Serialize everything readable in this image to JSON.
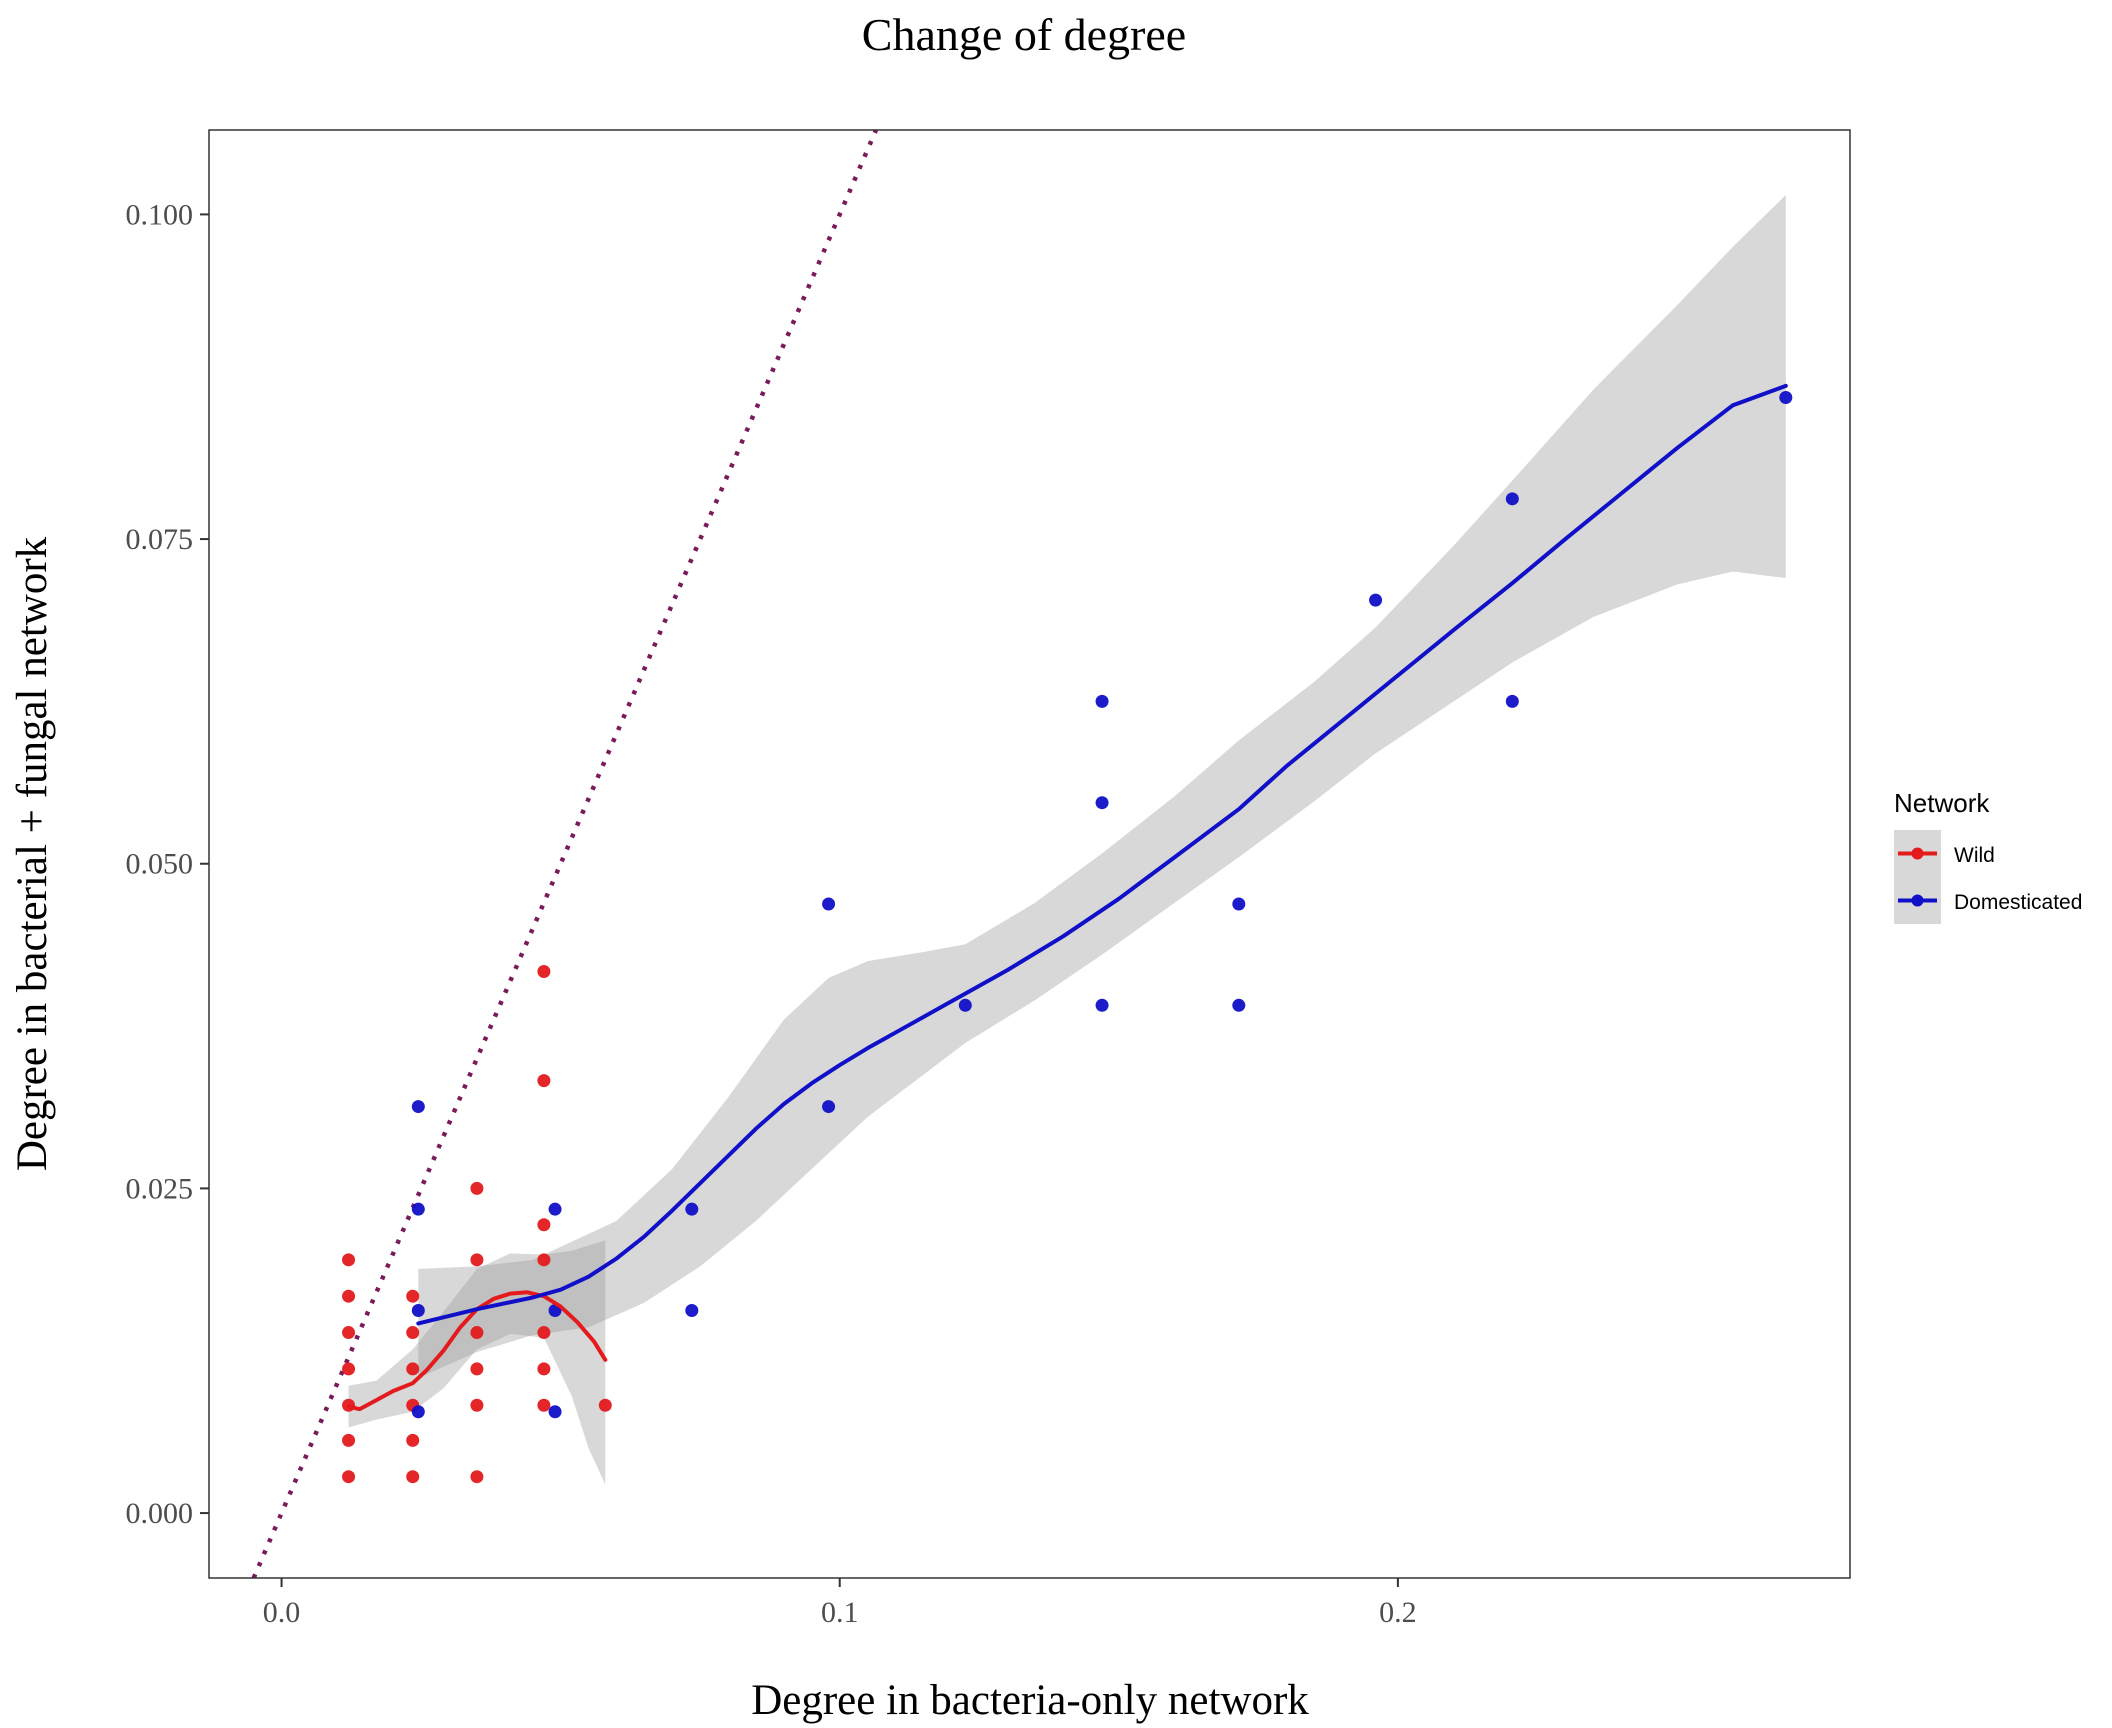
{
  "chart_data": {
    "type": "scatter",
    "title": "Change of degree",
    "xlabel": "Degree in bacteria-only network",
    "ylabel": "Degree in bacterial + fungal network",
    "xlim": [
      -0.013,
      0.281
    ],
    "ylim": [
      -0.005,
      0.1065
    ],
    "x_ticks": [
      {
        "value": 0.0,
        "label": "0.0"
      },
      {
        "value": 0.1,
        "label": "0.1"
      },
      {
        "value": 0.2,
        "label": "0.2"
      }
    ],
    "y_ticks": [
      {
        "value": 0.0,
        "label": "0.000"
      },
      {
        "value": 0.025,
        "label": "0.025"
      },
      {
        "value": 0.05,
        "label": "0.050"
      },
      {
        "value": 0.075,
        "label": "0.075"
      },
      {
        "value": 0.1,
        "label": "0.100"
      }
    ],
    "grid": false,
    "legend": {
      "title": "Network",
      "position": "right",
      "entries": [
        {
          "label": "Wild",
          "color": "#e41a1c"
        },
        {
          "label": "Domesticated",
          "color": "#1010c8"
        }
      ]
    },
    "reference_line": {
      "type": "identity",
      "slope": 1,
      "intercept": 0,
      "style": "dotted",
      "color": "#7b1a5a"
    },
    "series": [
      {
        "name": "Wild",
        "color": "#e41a1c",
        "points": [
          {
            "x": 0.012,
            "y": 0.0195
          },
          {
            "x": 0.012,
            "y": 0.0167
          },
          {
            "x": 0.012,
            "y": 0.0139
          },
          {
            "x": 0.012,
            "y": 0.0111
          },
          {
            "x": 0.012,
            "y": 0.0083
          },
          {
            "x": 0.012,
            "y": 0.0056
          },
          {
            "x": 0.012,
            "y": 0.0028
          },
          {
            "x": 0.0235,
            "y": 0.0167
          },
          {
            "x": 0.0235,
            "y": 0.0139
          },
          {
            "x": 0.0235,
            "y": 0.0111
          },
          {
            "x": 0.0235,
            "y": 0.0083
          },
          {
            "x": 0.0235,
            "y": 0.0056
          },
          {
            "x": 0.0235,
            "y": 0.0028
          },
          {
            "x": 0.035,
            "y": 0.025
          },
          {
            "x": 0.035,
            "y": 0.0195
          },
          {
            "x": 0.035,
            "y": 0.0139
          },
          {
            "x": 0.035,
            "y": 0.0111
          },
          {
            "x": 0.035,
            "y": 0.0083
          },
          {
            "x": 0.035,
            "y": 0.0028
          },
          {
            "x": 0.047,
            "y": 0.0417
          },
          {
            "x": 0.047,
            "y": 0.0333
          },
          {
            "x": 0.047,
            "y": 0.0222
          },
          {
            "x": 0.047,
            "y": 0.0195
          },
          {
            "x": 0.047,
            "y": 0.0139
          },
          {
            "x": 0.047,
            "y": 0.0111
          },
          {
            "x": 0.047,
            "y": 0.0083
          },
          {
            "x": 0.058,
            "y": 0.0083
          }
        ],
        "smooth": [
          [
            0.012,
            0.0082
          ],
          [
            0.014,
            0.008
          ],
          [
            0.017,
            0.0087
          ],
          [
            0.02,
            0.0094
          ],
          [
            0.0235,
            0.01
          ],
          [
            0.026,
            0.011
          ],
          [
            0.029,
            0.0125
          ],
          [
            0.032,
            0.0143
          ],
          [
            0.035,
            0.0157
          ],
          [
            0.038,
            0.0165
          ],
          [
            0.041,
            0.0169
          ],
          [
            0.044,
            0.017
          ],
          [
            0.047,
            0.0167
          ],
          [
            0.05,
            0.0159
          ],
          [
            0.053,
            0.0147
          ],
          [
            0.056,
            0.0132
          ],
          [
            0.058,
            0.0118
          ]
        ],
        "band_upper": [
          [
            0.012,
            0.0098
          ],
          [
            0.017,
            0.0102
          ],
          [
            0.0235,
            0.0126
          ],
          [
            0.029,
            0.0155
          ],
          [
            0.035,
            0.0188
          ],
          [
            0.041,
            0.02
          ],
          [
            0.047,
            0.0199
          ],
          [
            0.052,
            0.0202
          ],
          [
            0.058,
            0.021
          ]
        ],
        "band_lower": [
          [
            0.012,
            0.0066
          ],
          [
            0.017,
            0.0072
          ],
          [
            0.0235,
            0.0078
          ],
          [
            0.029,
            0.0096
          ],
          [
            0.035,
            0.0126
          ],
          [
            0.041,
            0.0138
          ],
          [
            0.047,
            0.0135
          ],
          [
            0.052,
            0.009
          ],
          [
            0.055,
            0.005
          ],
          [
            0.058,
            0.0022
          ]
        ]
      },
      {
        "name": "Domesticated",
        "color": "#1010c8",
        "points": [
          {
            "x": 0.0245,
            "y": 0.0313
          },
          {
            "x": 0.0245,
            "y": 0.0234
          },
          {
            "x": 0.0245,
            "y": 0.0156
          },
          {
            "x": 0.0245,
            "y": 0.0078
          },
          {
            "x": 0.049,
            "y": 0.0234
          },
          {
            "x": 0.049,
            "y": 0.0156
          },
          {
            "x": 0.049,
            "y": 0.0078
          },
          {
            "x": 0.0735,
            "y": 0.0234
          },
          {
            "x": 0.0735,
            "y": 0.0156
          },
          {
            "x": 0.098,
            "y": 0.0469
          },
          {
            "x": 0.098,
            "y": 0.0313
          },
          {
            "x": 0.1225,
            "y": 0.0391
          },
          {
            "x": 0.147,
            "y": 0.0625
          },
          {
            "x": 0.147,
            "y": 0.0547
          },
          {
            "x": 0.147,
            "y": 0.0391
          },
          {
            "x": 0.1715,
            "y": 0.0469
          },
          {
            "x": 0.1715,
            "y": 0.0391
          },
          {
            "x": 0.196,
            "y": 0.0703
          },
          {
            "x": 0.2205,
            "y": 0.0781
          },
          {
            "x": 0.2205,
            "y": 0.0625
          },
          {
            "x": 0.2695,
            "y": 0.0859
          }
        ],
        "smooth": [
          [
            0.0245,
            0.0146
          ],
          [
            0.035,
            0.0157
          ],
          [
            0.045,
            0.0166
          ],
          [
            0.05,
            0.0172
          ],
          [
            0.055,
            0.0182
          ],
          [
            0.06,
            0.0196
          ],
          [
            0.065,
            0.0213
          ],
          [
            0.07,
            0.0233
          ],
          [
            0.075,
            0.0254
          ],
          [
            0.08,
            0.0275
          ],
          [
            0.085,
            0.0296
          ],
          [
            0.09,
            0.0315
          ],
          [
            0.095,
            0.0331
          ],
          [
            0.1,
            0.0345
          ],
          [
            0.105,
            0.0358
          ],
          [
            0.11,
            0.037
          ],
          [
            0.115,
            0.0382
          ],
          [
            0.12,
            0.0394
          ],
          [
            0.1225,
            0.04
          ],
          [
            0.13,
            0.0418
          ],
          [
            0.14,
            0.0444
          ],
          [
            0.15,
            0.0473
          ],
          [
            0.16,
            0.0505
          ],
          [
            0.1715,
            0.0542
          ],
          [
            0.18,
            0.0575
          ],
          [
            0.19,
            0.061
          ],
          [
            0.2,
            0.0645
          ],
          [
            0.21,
            0.068
          ],
          [
            0.2205,
            0.0716
          ],
          [
            0.23,
            0.075
          ],
          [
            0.24,
            0.0785
          ],
          [
            0.25,
            0.082
          ],
          [
            0.26,
            0.0853
          ],
          [
            0.2695,
            0.0868
          ]
        ],
        "band_upper": [
          [
            0.0245,
            0.0188
          ],
          [
            0.035,
            0.019
          ],
          [
            0.045,
            0.0195
          ],
          [
            0.06,
            0.0225
          ],
          [
            0.07,
            0.0265
          ],
          [
            0.08,
            0.032
          ],
          [
            0.09,
            0.038
          ],
          [
            0.098,
            0.0412
          ],
          [
            0.105,
            0.0425
          ],
          [
            0.115,
            0.0432
          ],
          [
            0.1225,
            0.0438
          ],
          [
            0.135,
            0.047
          ],
          [
            0.147,
            0.0508
          ],
          [
            0.16,
            0.0552
          ],
          [
            0.1715,
            0.0595
          ],
          [
            0.185,
            0.064
          ],
          [
            0.196,
            0.0682
          ],
          [
            0.21,
            0.0745
          ],
          [
            0.2205,
            0.0795
          ],
          [
            0.235,
            0.0865
          ],
          [
            0.25,
            0.093
          ],
          [
            0.26,
            0.0975
          ],
          [
            0.2695,
            0.1015
          ]
        ],
        "band_lower": [
          [
            0.0245,
            0.0104
          ],
          [
            0.035,
            0.0124
          ],
          [
            0.045,
            0.0137
          ],
          [
            0.055,
            0.0143
          ],
          [
            0.065,
            0.0162
          ],
          [
            0.075,
            0.019
          ],
          [
            0.085,
            0.0225
          ],
          [
            0.095,
            0.0265
          ],
          [
            0.105,
            0.0305
          ],
          [
            0.1225,
            0.0362
          ],
          [
            0.135,
            0.0395
          ],
          [
            0.147,
            0.043
          ],
          [
            0.16,
            0.047
          ],
          [
            0.1715,
            0.0505
          ],
          [
            0.185,
            0.0548
          ],
          [
            0.196,
            0.0585
          ],
          [
            0.21,
            0.0625
          ],
          [
            0.2205,
            0.0655
          ],
          [
            0.235,
            0.069
          ],
          [
            0.25,
            0.0715
          ],
          [
            0.26,
            0.0725
          ],
          [
            0.2695,
            0.072
          ]
        ]
      }
    ]
  }
}
